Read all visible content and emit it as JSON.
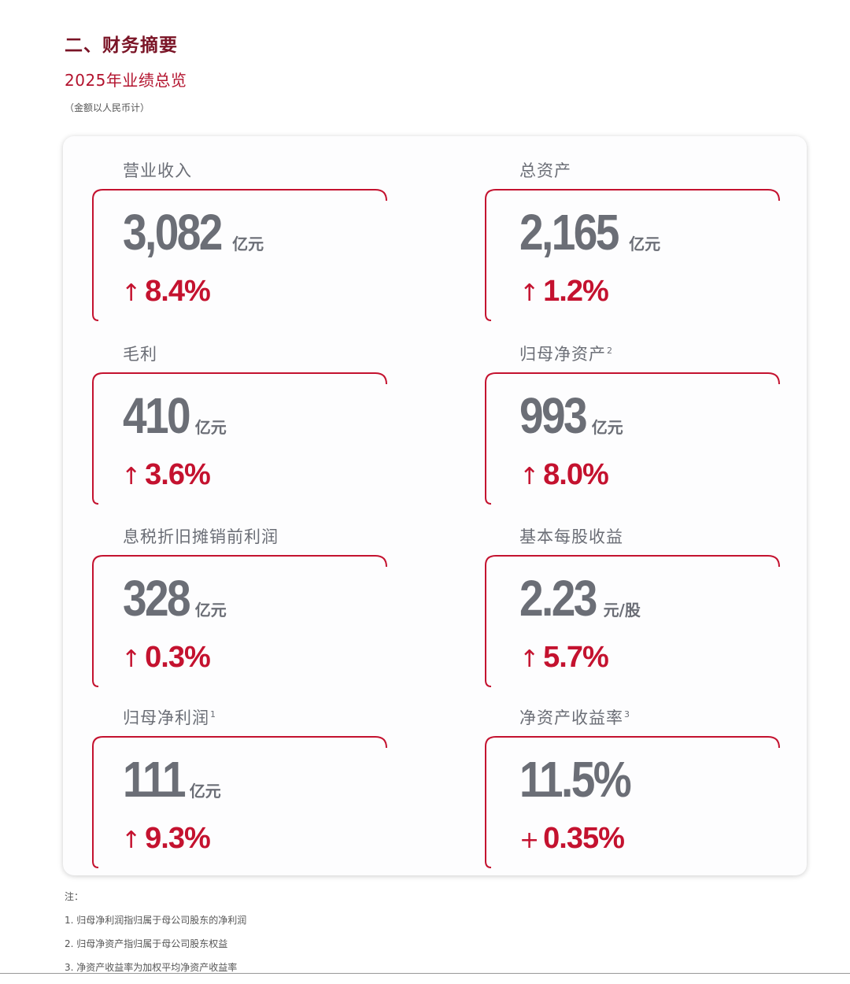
{
  "header": {
    "section_title": "二、财务摘要",
    "subtitle": "2025年业绩总览",
    "currency_note": "（金额以人民币计）"
  },
  "metrics": [
    {
      "label": "营业收入",
      "sup": "",
      "value": "3,082",
      "unit": "亿元",
      "change_symbol": "↑",
      "change": "8.4%"
    },
    {
      "label": "总资产",
      "sup": "",
      "value": "2,165",
      "unit": "亿元",
      "change_symbol": "↑",
      "change": "1.2%"
    },
    {
      "label": "毛利",
      "sup": "",
      "value": "410",
      "unit": "亿元",
      "change_symbol": "↑",
      "change": "3.6%"
    },
    {
      "label": "归母净资产",
      "sup": "2",
      "value": "993",
      "unit": "亿元",
      "change_symbol": "↑",
      "change": "8.0%"
    },
    {
      "label": "息税折旧摊销前利润",
      "sup": "",
      "value": "328",
      "unit": "亿元",
      "change_symbol": "↑",
      "change": "0.3%"
    },
    {
      "label": "基本每股收益",
      "sup": "",
      "value": "2.23",
      "unit": "元/股",
      "change_symbol": "↑",
      "change": "5.7%"
    },
    {
      "label": "归母净利润",
      "sup": "1",
      "value": "111",
      "unit": "亿元",
      "change_symbol": "↑",
      "change": "9.3%"
    },
    {
      "label": "净资产收益率",
      "sup": "3",
      "value": "11.5%",
      "unit": "",
      "change_symbol": "+",
      "change": "0.35%"
    }
  ],
  "notes": {
    "title": "注：",
    "items": [
      "1. 归母净利润指归属于母公司股东的净利润",
      "2. 归母净资产指归属于母公司股东权益",
      "3. 净资产收益率为加权平均净资产收益率"
    ]
  },
  "colors": {
    "title_dark_red": "#7a1426",
    "accent_red": "#c4122f",
    "value_gray": "#6b6e76"
  }
}
